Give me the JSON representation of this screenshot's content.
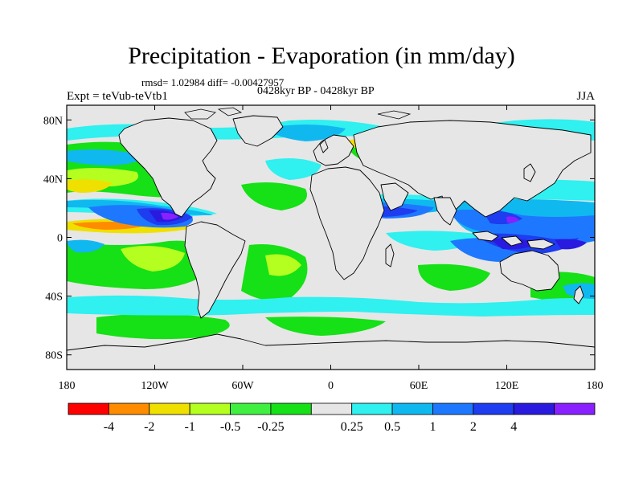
{
  "title": "Precipitation - Evaporation (in mm/day)",
  "stats": "rmsd= 1.02984 diff= -0.00427957",
  "period": "0428kyr BP - 0428kyr BP",
  "experiment": "Expt = teVub-teVtb1",
  "season": "JJA",
  "map": {
    "lon_range": [
      -180,
      180
    ],
    "lat_range": [
      -90,
      90
    ],
    "lat_ticks": [
      {
        "value": 80,
        "label": "80N"
      },
      {
        "value": 40,
        "label": "40N"
      },
      {
        "value": 0,
        "label": "0"
      },
      {
        "value": -40,
        "label": "40S"
      },
      {
        "value": -80,
        "label": "80S"
      }
    ],
    "lon_ticks": [
      {
        "value": -180,
        "label": "180"
      },
      {
        "value": -120,
        "label": "120W"
      },
      {
        "value": -60,
        "label": "60W"
      },
      {
        "value": 0,
        "label": "0"
      },
      {
        "value": 60,
        "label": "60E"
      },
      {
        "value": 120,
        "label": "120E"
      },
      {
        "value": 180,
        "label": "180"
      }
    ],
    "land_color": "#e6e6e6",
    "coastline_color": "#000000"
  },
  "colorbar": {
    "colors": [
      "#ff0000",
      "#ff8c00",
      "#f0e000",
      "#b4ff20",
      "#40f040",
      "#16e016",
      "#e6e6e6",
      "#30f0f0",
      "#10b8f0",
      "#1e78ff",
      "#1e3cf0",
      "#2a1ae0",
      "#8a20ff"
    ],
    "labels": [
      "-4",
      "-2",
      "-1",
      "-0.5",
      "-0.25",
      "0.25",
      "0.5",
      "1",
      "2",
      "4"
    ],
    "label_boundaries": [
      1,
      2,
      3,
      4,
      5,
      7,
      8,
      9,
      10,
      11
    ]
  }
}
